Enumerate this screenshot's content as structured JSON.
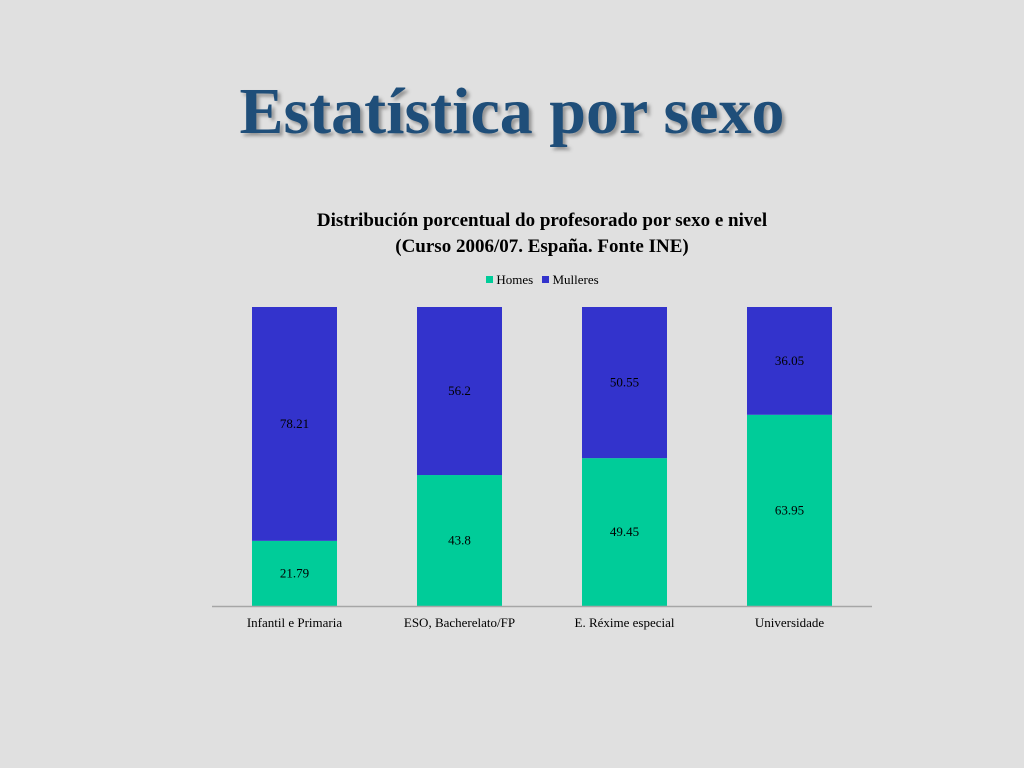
{
  "slide": {
    "title": "Estatística por sexo"
  },
  "chart_data": {
    "type": "bar",
    "stacked": true,
    "title": "Distribución porcentual do profesorado por sexo e nivel (Curso 2006/07. España. Fonte INE)",
    "title_lines": [
      "Distribución porcentual do profesorado por sexo e nivel",
      "(Curso 2006/07. España. Fonte INE)"
    ],
    "categories": [
      "Infantil e Primaria",
      "ESO, Bacherelato/FP",
      "E. Réxime especial",
      "Universidade"
    ],
    "series": [
      {
        "name": "Homes",
        "values": [
          21.79,
          43.8,
          49.45,
          63.95
        ],
        "color": "#00cc99"
      },
      {
        "name": "Mulleres",
        "values": [
          78.21,
          56.2,
          50.55,
          36.05
        ],
        "color": "#3333cc"
      }
    ],
    "ylim": [
      0,
      100
    ],
    "legend_position": "top",
    "grid": false,
    "data_labels": true
  }
}
